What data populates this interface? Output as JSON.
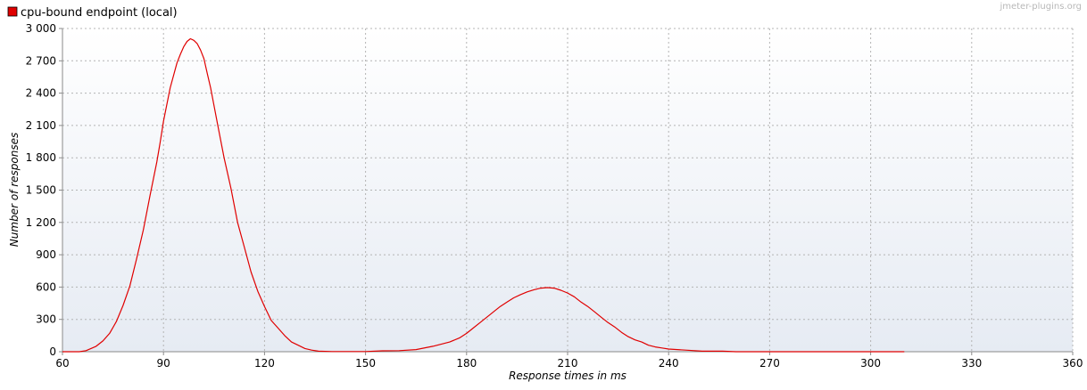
{
  "chart_data": {
    "type": "line",
    "title": "",
    "xlabel": "Response times in ms",
    "ylabel": "Number of responses",
    "xlim": [
      60,
      360
    ],
    "ylim": [
      0,
      3000
    ],
    "x_ticks": [
      60,
      90,
      120,
      150,
      180,
      210,
      240,
      270,
      300,
      330,
      360
    ],
    "x_tick_labels": [
      "60",
      "90",
      "120",
      "150",
      "180",
      "210",
      "240",
      "270",
      "300",
      "330",
      "360"
    ],
    "y_ticks": [
      0,
      300,
      600,
      900,
      1200,
      1500,
      1800,
      2100,
      2400,
      2700,
      3000
    ],
    "y_tick_labels": [
      "0",
      "300",
      "600",
      "900",
      "1 200",
      "1 500",
      "1 800",
      "2 100",
      "2 400",
      "2 700",
      "3 000"
    ],
    "grid": true,
    "legend_position": "top-left",
    "series": [
      {
        "name": "cpu-bound endpoint (local)",
        "color": "#e00000",
        "x": [
          60,
          65,
          67,
          70,
          72,
          74,
          76,
          78,
          80,
          82,
          84,
          86,
          88,
          89,
          90,
          92,
          94,
          95,
          96,
          97,
          98,
          99,
          100,
          101,
          102,
          103,
          104,
          106,
          108,
          110,
          112,
          114,
          116,
          118,
          120,
          122,
          124,
          126,
          128,
          130,
          132,
          134,
          136,
          140,
          145,
          150,
          155,
          160,
          165,
          170,
          175,
          178,
          180,
          182,
          184,
          186,
          188,
          190,
          192,
          194,
          196,
          198,
          200,
          202,
          204,
          206,
          208,
          210,
          212,
          214,
          216,
          218,
          220,
          222,
          224,
          226,
          228,
          230,
          232,
          234,
          236,
          238,
          240,
          245,
          250,
          256,
          260,
          270,
          280,
          290,
          300,
          310
        ],
        "y": [
          0,
          0,
          10,
          50,
          100,
          170,
          280,
          430,
          610,
          860,
          1130,
          1450,
          1760,
          1940,
          2140,
          2450,
          2680,
          2760,
          2830,
          2880,
          2905,
          2890,
          2860,
          2800,
          2720,
          2580,
          2450,
          2120,
          1800,
          1520,
          1200,
          970,
          740,
          560,
          420,
          290,
          220,
          150,
          90,
          60,
          30,
          15,
          5,
          2,
          2,
          2,
          8,
          10,
          20,
          50,
          90,
          130,
          170,
          220,
          270,
          320,
          370,
          420,
          460,
          500,
          530,
          555,
          575,
          590,
          595,
          590,
          570,
          545,
          510,
          460,
          420,
          370,
          320,
          270,
          230,
          180,
          140,
          110,
          90,
          60,
          45,
          35,
          25,
          15,
          5,
          5,
          0,
          0,
          0,
          0,
          0,
          0
        ]
      }
    ]
  },
  "watermark": "jmeter-plugins.org"
}
